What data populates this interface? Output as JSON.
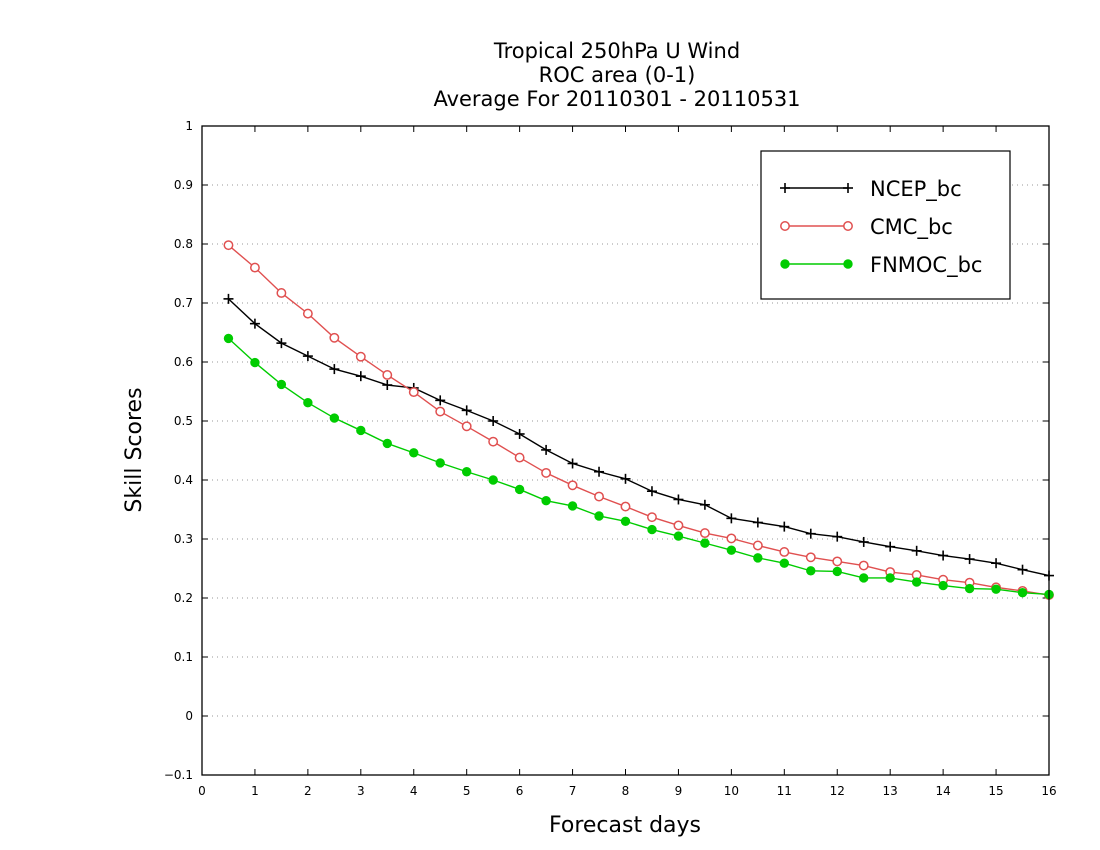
{
  "chart_data": {
    "type": "line",
    "title": [
      "Tropical 250hPa U Wind",
      "ROC area (0-1)",
      "Average For 20110301 - 20110531"
    ],
    "xlabel": "Forecast days",
    "ylabel": "Skill Scores",
    "xlim": [
      0,
      16
    ],
    "ylim": [
      -0.1,
      1
    ],
    "xticks": [
      "0",
      "1",
      "2",
      "3",
      "4",
      "5",
      "6",
      "7",
      "8",
      "9",
      "10",
      "11",
      "12",
      "13",
      "14",
      "15",
      "16"
    ],
    "yticks": [
      "1",
      "0.9",
      "0.8",
      "0.7",
      "0.6",
      "0.5",
      "0.4",
      "0.3",
      "0.2",
      "0.1",
      "0",
      "−0.1"
    ],
    "grid": "horizontal dotted",
    "legend_position": "top-right",
    "x": [
      0.5,
      1,
      1.5,
      2,
      2.5,
      3,
      3.5,
      4,
      4.5,
      5,
      5.5,
      6,
      6.5,
      7,
      7.5,
      8,
      8.5,
      9,
      9.5,
      10,
      10.5,
      11,
      11.5,
      12,
      12.5,
      13,
      13.5,
      14,
      14.5,
      15,
      15.5,
      16
    ],
    "series": [
      {
        "name": "NCEP_bc",
        "color": "#000000",
        "marker": "plus",
        "values": [
          0.707,
          0.665,
          0.632,
          0.61,
          0.588,
          0.576,
          0.561,
          0.556,
          0.535,
          0.518,
          0.5,
          0.478,
          0.451,
          0.428,
          0.414,
          0.402,
          0.381,
          0.367,
          0.358,
          0.335,
          0.328,
          0.321,
          0.309,
          0.304,
          0.295,
          0.287,
          0.28,
          0.272,
          0.266,
          0.259,
          0.248,
          0.238
        ]
      },
      {
        "name": "CMC_bc",
        "color": "#e05050",
        "marker": "open-circle",
        "values": [
          0.798,
          0.76,
          0.717,
          0.682,
          0.641,
          0.609,
          0.578,
          0.549,
          0.516,
          0.491,
          0.465,
          0.438,
          0.412,
          0.391,
          0.372,
          0.355,
          0.337,
          0.323,
          0.31,
          0.301,
          0.289,
          0.278,
          0.269,
          0.262,
          0.255,
          0.244,
          0.239,
          0.231,
          0.226,
          0.218,
          0.212,
          0.205
        ]
      },
      {
        "name": "FNMOC_bc",
        "color": "#00cc00",
        "marker": "filled-circle",
        "values": [
          0.64,
          0.599,
          0.562,
          0.531,
          0.505,
          0.484,
          0.462,
          0.446,
          0.429,
          0.414,
          0.4,
          0.384,
          0.365,
          0.356,
          0.339,
          0.33,
          0.316,
          0.305,
          0.293,
          0.281,
          0.268,
          0.259,
          0.246,
          0.245,
          0.234,
          0.234,
          0.227,
          0.221,
          0.216,
          0.215,
          0.209,
          0.206
        ]
      }
    ]
  }
}
